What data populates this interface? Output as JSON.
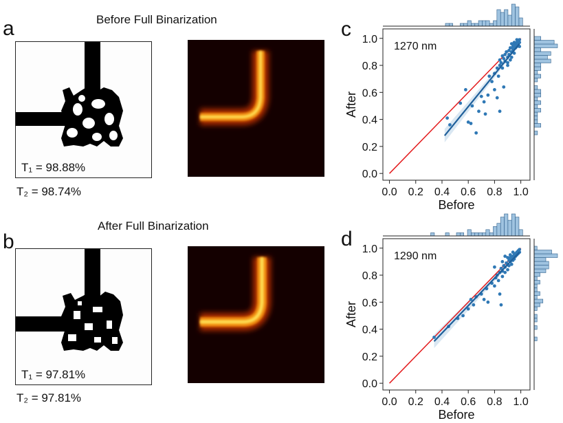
{
  "panels": {
    "a": {
      "label": "a",
      "title": "Before Full Binarization",
      "t1": "T₁ = 98.88%",
      "t2": "T₂ = 98.74%"
    },
    "b": {
      "label": "b",
      "title": "After Full Binarization",
      "t1": "T₁ = 97.81%",
      "t2": "T₂ = 97.81%"
    }
  },
  "chart_data": [
    {
      "id": "c",
      "type": "scatter",
      "panel_label": "c",
      "annotation": "1270 nm",
      "xlabel": "Before",
      "ylabel": "After",
      "xlim": [
        -0.05,
        1.07
      ],
      "ylim": [
        -0.05,
        1.07
      ],
      "xticks": [
        "0.0",
        "0.2",
        "0.4",
        "0.6",
        "0.8",
        "1.0"
      ],
      "yticks": [
        "0.0",
        "0.2",
        "0.4",
        "0.6",
        "0.8",
        "1.0"
      ],
      "identity_line": [
        [
          0,
          0
        ],
        [
          1,
          1
        ]
      ],
      "identity_color": "#e31a1c",
      "fit_line": [
        [
          0.42,
          0.28
        ],
        [
          0.99,
          0.96
        ]
      ],
      "color": "#2f78b5",
      "points": [
        [
          0.44,
          0.41
        ],
        [
          0.46,
          0.36
        ],
        [
          0.54,
          0.52
        ],
        [
          0.58,
          0.62
        ],
        [
          0.6,
          0.38
        ],
        [
          0.62,
          0.37
        ],
        [
          0.63,
          0.5
        ],
        [
          0.66,
          0.3
        ],
        [
          0.68,
          0.46
        ],
        [
          0.7,
          0.57
        ],
        [
          0.72,
          0.53
        ],
        [
          0.73,
          0.44
        ],
        [
          0.75,
          0.58
        ],
        [
          0.76,
          0.72
        ],
        [
          0.78,
          0.68
        ],
        [
          0.8,
          0.74
        ],
        [
          0.8,
          0.62
        ],
        [
          0.82,
          0.78
        ],
        [
          0.83,
          0.72
        ],
        [
          0.84,
          0.8
        ],
        [
          0.84,
          0.84
        ],
        [
          0.85,
          0.82
        ],
        [
          0.86,
          0.87
        ],
        [
          0.86,
          0.78
        ],
        [
          0.87,
          0.85
        ],
        [
          0.88,
          0.88
        ],
        [
          0.88,
          0.83
        ],
        [
          0.89,
          0.9
        ],
        [
          0.9,
          0.86
        ],
        [
          0.9,
          0.8
        ],
        [
          0.91,
          0.91
        ],
        [
          0.91,
          0.88
        ],
        [
          0.92,
          0.84
        ],
        [
          0.92,
          0.93
        ],
        [
          0.93,
          0.9
        ],
        [
          0.93,
          0.86
        ],
        [
          0.94,
          0.94
        ],
        [
          0.94,
          0.92
        ],
        [
          0.95,
          0.89
        ],
        [
          0.95,
          0.95
        ],
        [
          0.96,
          0.93
        ],
        [
          0.96,
          0.96
        ],
        [
          0.97,
          0.94
        ],
        [
          0.97,
          0.97
        ],
        [
          0.98,
          0.95
        ],
        [
          0.98,
          0.98
        ],
        [
          0.99,
          0.97
        ],
        [
          0.99,
          0.99
        ],
        [
          0.87,
          0.64
        ],
        [
          0.84,
          0.46
        ],
        [
          0.82,
          0.56
        ],
        [
          0.9,
          0.82
        ],
        [
          0.93,
          0.96
        ],
        [
          0.95,
          0.97
        ],
        [
          0.97,
          0.99
        ],
        [
          0.99,
          0.94
        ]
      ]
    },
    {
      "id": "d",
      "type": "scatter",
      "panel_label": "d",
      "annotation": "1290 nm",
      "xlabel": "Before",
      "ylabel": "After",
      "xlim": [
        -0.05,
        1.07
      ],
      "ylim": [
        -0.05,
        1.07
      ],
      "xticks": [
        "0.0",
        "0.2",
        "0.4",
        "0.6",
        "0.8",
        "1.0"
      ],
      "yticks": [
        "0.0",
        "0.2",
        "0.4",
        "0.6",
        "0.8",
        "1.0"
      ],
      "identity_line": [
        [
          0,
          0
        ],
        [
          1,
          1
        ]
      ],
      "identity_color": "#e31a1c",
      "fit_line": [
        [
          0.34,
          0.31
        ],
        [
          0.99,
          0.97
        ]
      ],
      "color": "#2f78b5",
      "points": [
        [
          0.34,
          0.34
        ],
        [
          0.45,
          0.42
        ],
        [
          0.52,
          0.48
        ],
        [
          0.56,
          0.5
        ],
        [
          0.6,
          0.55
        ],
        [
          0.62,
          0.62
        ],
        [
          0.64,
          0.58
        ],
        [
          0.66,
          0.64
        ],
        [
          0.7,
          0.66
        ],
        [
          0.72,
          0.62
        ],
        [
          0.74,
          0.7
        ],
        [
          0.75,
          0.6
        ],
        [
          0.78,
          0.74
        ],
        [
          0.8,
          0.72
        ],
        [
          0.81,
          0.78
        ],
        [
          0.82,
          0.8
        ],
        [
          0.83,
          0.76
        ],
        [
          0.84,
          0.82
        ],
        [
          0.85,
          0.85
        ],
        [
          0.86,
          0.83
        ],
        [
          0.86,
          0.79
        ],
        [
          0.87,
          0.87
        ],
        [
          0.88,
          0.86
        ],
        [
          0.88,
          0.82
        ],
        [
          0.89,
          0.89
        ],
        [
          0.9,
          0.88
        ],
        [
          0.9,
          0.84
        ],
        [
          0.91,
          0.91
        ],
        [
          0.91,
          0.87
        ],
        [
          0.92,
          0.93
        ],
        [
          0.92,
          0.9
        ],
        [
          0.93,
          0.92
        ],
        [
          0.93,
          0.88
        ],
        [
          0.94,
          0.94
        ],
        [
          0.94,
          0.91
        ],
        [
          0.95,
          0.95
        ],
        [
          0.95,
          0.92
        ],
        [
          0.96,
          0.96
        ],
        [
          0.96,
          0.94
        ],
        [
          0.97,
          0.97
        ],
        [
          0.97,
          0.95
        ],
        [
          0.98,
          0.98
        ],
        [
          0.98,
          0.96
        ],
        [
          0.99,
          0.97
        ],
        [
          0.99,
          0.99
        ],
        [
          0.84,
          0.66
        ],
        [
          0.85,
          0.58
        ],
        [
          0.8,
          0.86
        ],
        [
          0.88,
          0.94
        ],
        [
          0.92,
          0.95
        ],
        [
          0.86,
          0.9
        ],
        [
          0.9,
          0.93
        ],
        [
          0.94,
          0.97
        ]
      ]
    }
  ]
}
